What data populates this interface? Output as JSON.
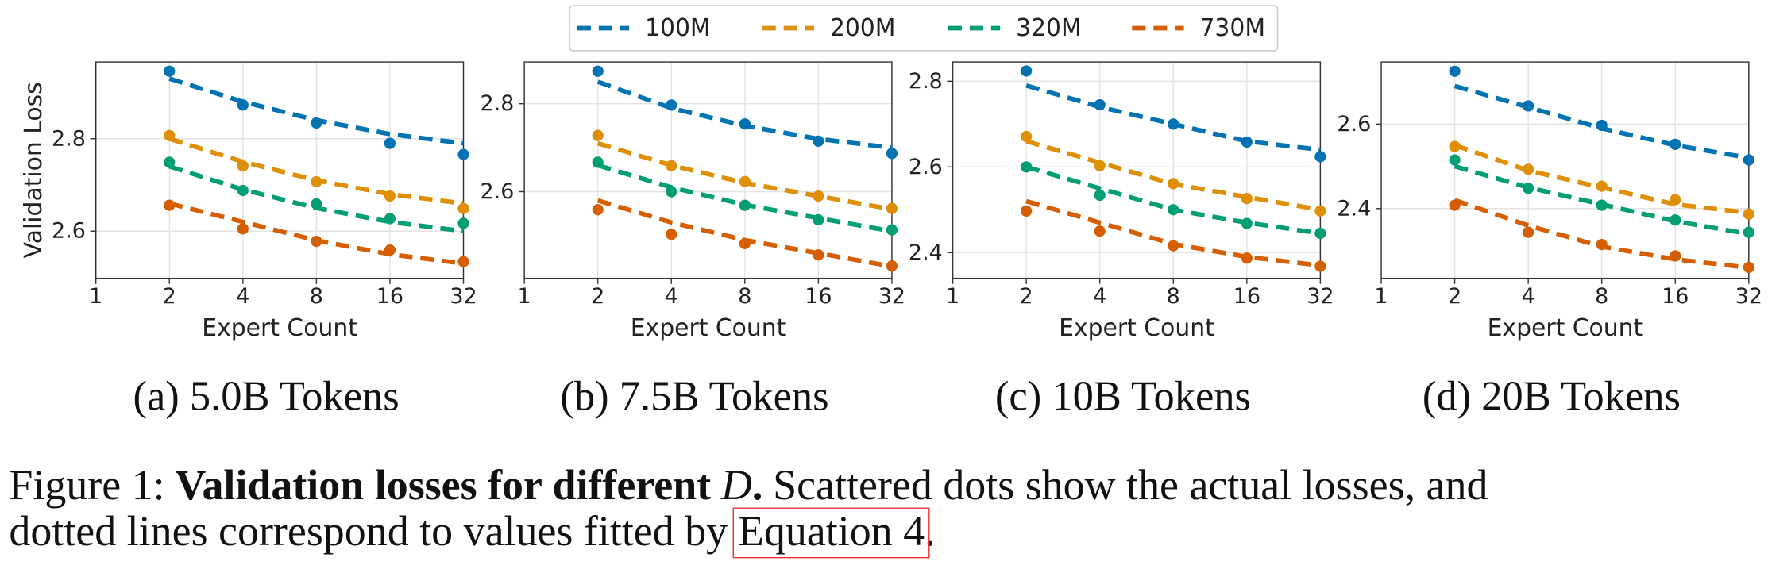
{
  "legend": [
    {
      "name": "100M",
      "color": "#0173b2"
    },
    {
      "name": "200M",
      "color": "#de8f05"
    },
    {
      "name": "320M",
      "color": "#029e73"
    },
    {
      "name": "730M",
      "color": "#d55e00"
    }
  ],
  "chart_data": [
    {
      "type": "scatter",
      "subtitle": "(a) 5.0B Tokens",
      "xlabel": "Expert Count",
      "ylabel": "Validation Loss",
      "x": [
        2,
        4,
        8,
        16,
        32
      ],
      "xlim": [
        1,
        32
      ],
      "xticks": [
        1,
        2,
        4,
        8,
        16,
        32
      ],
      "xscale": "log2",
      "ylim": [
        2.498,
        2.966
      ],
      "yticks": [
        2.6,
        2.8
      ],
      "grid": true,
      "series": [
        {
          "values": [
            2.946,
            2.873,
            2.834,
            2.79,
            2.766
          ],
          "fitted": [
            2.93,
            2.88,
            2.84,
            2.81,
            2.79
          ]
        },
        {
          "values": [
            2.807,
            2.741,
            2.707,
            2.676,
            2.649
          ],
          "fitted": [
            2.8,
            2.75,
            2.71,
            2.68,
            2.66
          ]
        },
        {
          "values": [
            2.749,
            2.688,
            2.659,
            2.627,
            2.617
          ],
          "fitted": [
            2.74,
            2.69,
            2.65,
            2.62,
            2.6
          ]
        },
        {
          "values": [
            2.656,
            2.605,
            2.578,
            2.559,
            2.534
          ],
          "fitted": [
            2.66,
            2.62,
            2.58,
            2.55,
            2.53
          ]
        }
      ]
    },
    {
      "type": "scatter",
      "subtitle": "(b) 7.5B Tokens",
      "xlabel": "Expert Count",
      "x": [
        2,
        4,
        8,
        16,
        32
      ],
      "xlim": [
        1,
        32
      ],
      "xticks": [
        1,
        2,
        4,
        8,
        16,
        32
      ],
      "xscale": "log2",
      "ylim": [
        2.403,
        2.895
      ],
      "yticks": [
        2.6,
        2.8
      ],
      "grid": true,
      "series": [
        {
          "values": [
            2.874,
            2.797,
            2.754,
            2.715,
            2.687
          ],
          "fitted": [
            2.85,
            2.79,
            2.75,
            2.72,
            2.7
          ]
        },
        {
          "values": [
            2.728,
            2.659,
            2.623,
            2.59,
            2.562
          ],
          "fitted": [
            2.71,
            2.66,
            2.62,
            2.59,
            2.56
          ]
        },
        {
          "values": [
            2.667,
            2.6,
            2.569,
            2.536,
            2.513
          ],
          "fitted": [
            2.66,
            2.61,
            2.57,
            2.54,
            2.51
          ]
        },
        {
          "values": [
            2.559,
            2.503,
            2.482,
            2.456,
            2.431
          ],
          "fitted": [
            2.58,
            2.53,
            2.49,
            2.46,
            2.43
          ]
        }
      ]
    },
    {
      "type": "scatter",
      "subtitle": "(c) 10B Tokens",
      "xlabel": "Expert Count",
      "x": [
        2,
        4,
        8,
        16,
        32
      ],
      "xlim": [
        1,
        32
      ],
      "xticks": [
        1,
        2,
        4,
        8,
        16,
        32
      ],
      "xscale": "log2",
      "ylim": [
        2.34,
        2.845
      ],
      "yticks": [
        2.4,
        2.6,
        2.8
      ],
      "grid": true,
      "series": [
        {
          "values": [
            2.824,
            2.745,
            2.7,
            2.658,
            2.624
          ],
          "fitted": [
            2.79,
            2.74,
            2.7,
            2.66,
            2.64
          ]
        },
        {
          "values": [
            2.671,
            2.603,
            2.561,
            2.526,
            2.497
          ],
          "fitted": [
            2.66,
            2.61,
            2.56,
            2.53,
            2.5
          ]
        },
        {
          "values": [
            2.6,
            2.534,
            2.5,
            2.468,
            2.445
          ],
          "fitted": [
            2.6,
            2.55,
            2.5,
            2.47,
            2.445
          ]
        },
        {
          "values": [
            2.497,
            2.45,
            2.416,
            2.387,
            2.368
          ],
          "fitted": [
            2.52,
            2.47,
            2.42,
            2.39,
            2.37
          ]
        }
      ]
    },
    {
      "type": "scatter",
      "subtitle": "(d) 20B Tokens",
      "xlabel": "Expert Count",
      "x": [
        2,
        4,
        8,
        16,
        32
      ],
      "xlim": [
        1,
        32
      ],
      "xticks": [
        1,
        2,
        4,
        8,
        16,
        32
      ],
      "xscale": "log2",
      "ylim": [
        2.235,
        2.747
      ],
      "yticks": [
        2.4,
        2.6
      ],
      "grid": true,
      "series": [
        {
          "values": [
            2.725,
            2.643,
            2.597,
            2.552,
            2.515
          ],
          "fitted": [
            2.69,
            2.64,
            2.59,
            2.55,
            2.52
          ]
        },
        {
          "values": [
            2.547,
            2.493,
            2.453,
            2.421,
            2.387
          ],
          "fitted": [
            2.55,
            2.49,
            2.45,
            2.41,
            2.39
          ]
        },
        {
          "values": [
            2.515,
            2.448,
            2.408,
            2.373,
            2.344
          ],
          "fitted": [
            2.5,
            2.45,
            2.41,
            2.37,
            2.34
          ]
        },
        {
          "values": [
            2.408,
            2.344,
            2.315,
            2.288,
            2.261
          ],
          "fitted": [
            2.42,
            2.36,
            2.31,
            2.28,
            2.26
          ]
        }
      ]
    }
  ],
  "caption": [
    [
      {
        "text": "Figure 1:",
        "style": "normal"
      },
      {
        "text": "Validation losses for different",
        "style": "bold"
      },
      {
        "text": "D",
        "style": "italic"
      },
      {
        "text": ".",
        "style": "bold"
      },
      {
        "text": "Scattered dots show the actual losses, and",
        "style": "normal"
      }
    ],
    [
      {
        "text": "dotted lines correspond to values fitted by",
        "style": "normal"
      },
      {
        "text": "Equation 4",
        "style": "link"
      },
      {
        "text": ".",
        "style": "normal"
      }
    ]
  ]
}
